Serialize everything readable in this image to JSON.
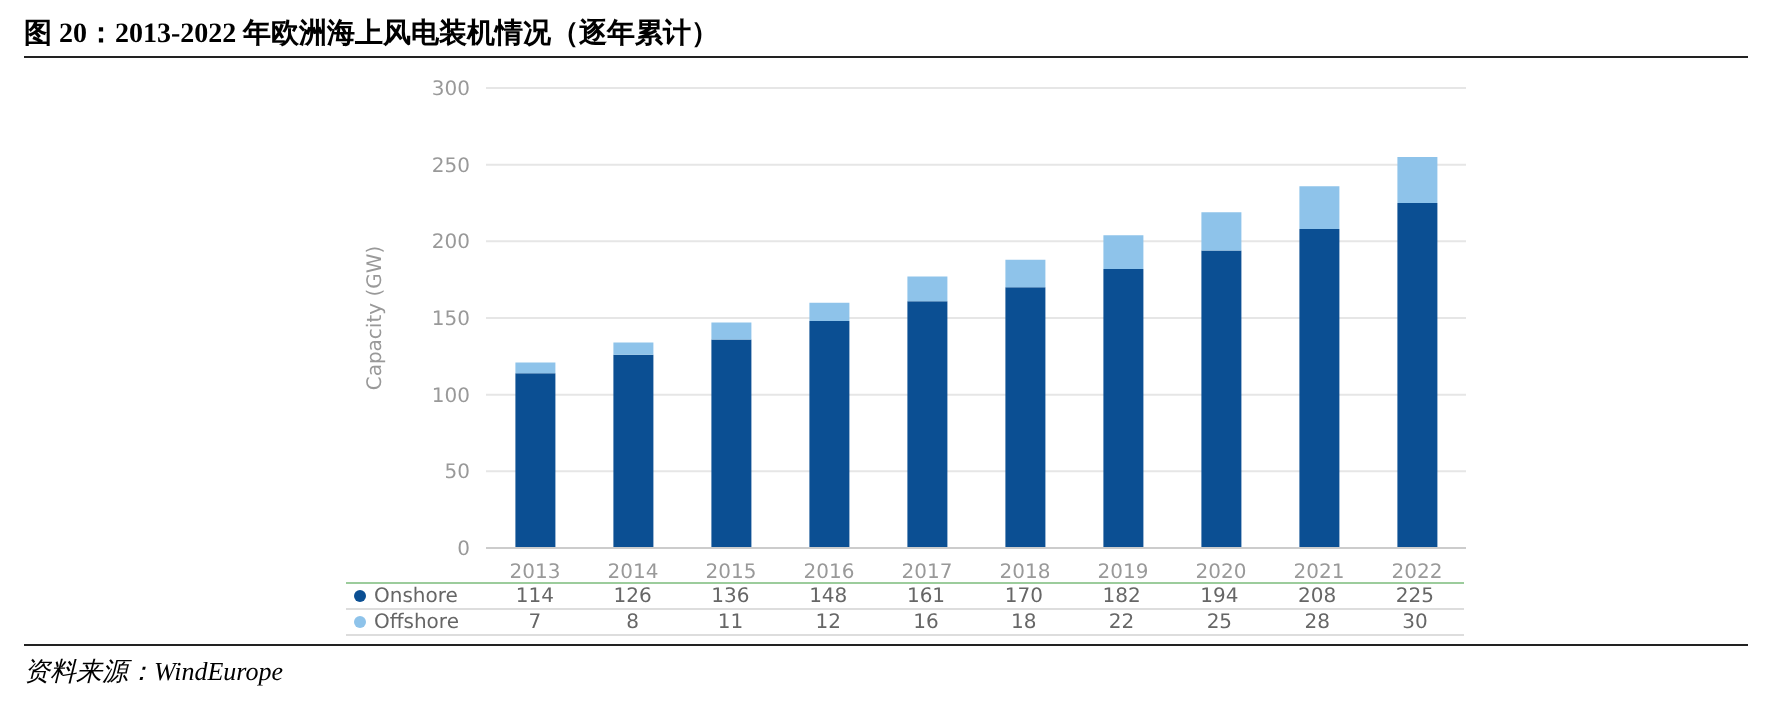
{
  "chart_data": {
    "type": "bar",
    "title": "图 20：2013-2022 年欧洲海上风电装机情况（逐年累计）",
    "ylabel": "Capacity (GW)",
    "categories": [
      "2013",
      "2014",
      "2015",
      "2016",
      "2017",
      "2018",
      "2019",
      "2020",
      "2021",
      "2022"
    ],
    "series": [
      {
        "name": "Onshore",
        "color": "#0b4f93",
        "values": [
          114,
          126,
          136,
          148,
          161,
          170,
          182,
          194,
          208,
          225
        ]
      },
      {
        "name": "Offshore",
        "color": "#8ec3ea",
        "values": [
          7,
          8,
          11,
          12,
          16,
          18,
          22,
          25,
          28,
          30
        ]
      }
    ],
    "stacked": true,
    "ylim": [
      0,
      300
    ],
    "yticks": [
      0,
      50,
      100,
      150,
      200,
      250,
      300
    ],
    "grid": "y",
    "legend": "bottom",
    "data_labels": true,
    "annotations": [
      "资料来源：WindEurope"
    ]
  }
}
